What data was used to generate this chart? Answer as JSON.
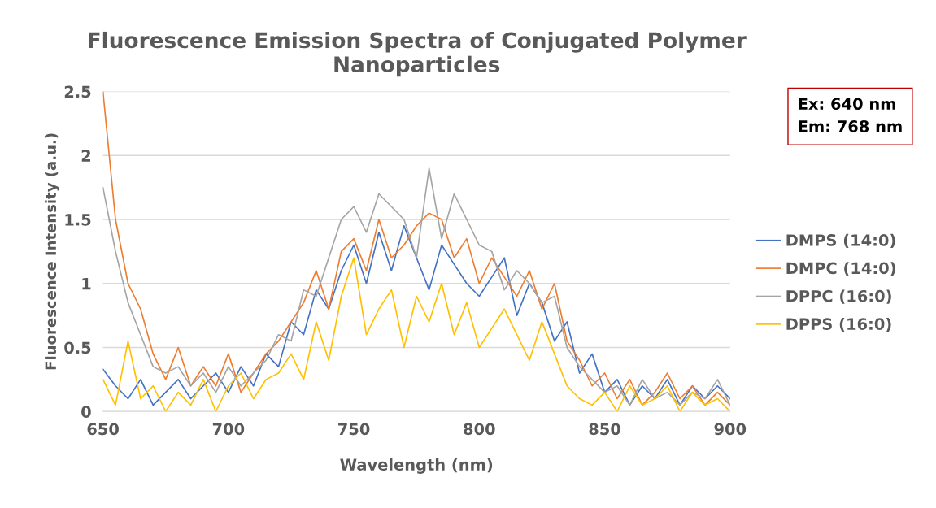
{
  "chart_data": {
    "type": "line",
    "title": "Fluorescence Emission Spectra of Conjugated Polymer Nanoparticles",
    "xlabel": "Wavelength (nm)",
    "ylabel": "Fluorescence Intensity (a.u.)",
    "x": [
      650,
      655,
      660,
      665,
      670,
      675,
      680,
      685,
      690,
      695,
      700,
      705,
      710,
      715,
      720,
      725,
      730,
      735,
      740,
      745,
      750,
      755,
      760,
      765,
      770,
      775,
      780,
      785,
      790,
      795,
      800,
      805,
      810,
      815,
      820,
      825,
      830,
      835,
      840,
      845,
      850,
      855,
      860,
      865,
      870,
      875,
      880,
      885,
      890,
      895,
      900
    ],
    "series": [
      {
        "name": "DMPS (14:0)",
        "color": "#4472c4",
        "values": [
          0.33,
          0.2,
          0.1,
          0.25,
          0.05,
          0.15,
          0.25,
          0.1,
          0.2,
          0.3,
          0.15,
          0.35,
          0.2,
          0.45,
          0.35,
          0.7,
          0.6,
          0.95,
          0.8,
          1.1,
          1.3,
          1.0,
          1.4,
          1.1,
          1.45,
          1.2,
          0.95,
          1.3,
          1.15,
          1.0,
          0.9,
          1.05,
          1.2,
          0.75,
          1.0,
          0.85,
          0.55,
          0.7,
          0.3,
          0.45,
          0.15,
          0.25,
          0.05,
          0.2,
          0.1,
          0.25,
          0.05,
          0.2,
          0.1,
          0.2,
          0.1
        ]
      },
      {
        "name": "DMPC (14:0)",
        "color": "#ed7d31",
        "values": [
          2.5,
          1.5,
          1.0,
          0.8,
          0.45,
          0.25,
          0.5,
          0.2,
          0.35,
          0.2,
          0.45,
          0.15,
          0.3,
          0.45,
          0.55,
          0.7,
          0.85,
          1.1,
          0.8,
          1.25,
          1.35,
          1.1,
          1.5,
          1.2,
          1.3,
          1.45,
          1.55,
          1.5,
          1.2,
          1.35,
          1.0,
          1.2,
          1.05,
          0.9,
          1.1,
          0.8,
          1.0,
          0.55,
          0.4,
          0.2,
          0.3,
          0.1,
          0.25,
          0.05,
          0.15,
          0.3,
          0.1,
          0.2,
          0.05,
          0.15,
          0.05
        ]
      },
      {
        "name": "DPPC (16:0)",
        "color": "#a5a5a5",
        "values": [
          1.75,
          1.25,
          0.85,
          0.6,
          0.35,
          0.3,
          0.35,
          0.2,
          0.3,
          0.15,
          0.35,
          0.2,
          0.3,
          0.4,
          0.6,
          0.55,
          0.95,
          0.9,
          1.2,
          1.5,
          1.6,
          1.4,
          1.7,
          1.6,
          1.5,
          1.2,
          1.9,
          1.35,
          1.7,
          1.5,
          1.3,
          1.25,
          0.95,
          1.1,
          1.0,
          0.85,
          0.9,
          0.5,
          0.35,
          0.25,
          0.15,
          0.2,
          0.05,
          0.25,
          0.1,
          0.15,
          0.05,
          0.15,
          0.1,
          0.25,
          0.05
        ]
      },
      {
        "name": "DPPS (16:0)",
        "color": "#ffc000",
        "values": [
          0.25,
          0.05,
          0.55,
          0.1,
          0.2,
          0.0,
          0.15,
          0.05,
          0.25,
          0.0,
          0.2,
          0.3,
          0.1,
          0.25,
          0.3,
          0.45,
          0.25,
          0.7,
          0.4,
          0.9,
          1.2,
          0.6,
          0.8,
          0.95,
          0.5,
          0.9,
          0.7,
          1.0,
          0.6,
          0.85,
          0.5,
          0.65,
          0.8,
          0.6,
          0.4,
          0.7,
          0.45,
          0.2,
          0.1,
          0.05,
          0.15,
          0.0,
          0.2,
          0.05,
          0.1,
          0.2,
          0.0,
          0.15,
          0.05,
          0.1,
          0.0
        ]
      }
    ],
    "xlim": [
      650,
      900
    ],
    "xticks": [
      650,
      700,
      750,
      800,
      850,
      900
    ],
    "ylim": [
      0,
      2.5
    ],
    "yticks": [
      0,
      0.5,
      1,
      1.5,
      2,
      2.5
    ],
    "grid": "y",
    "legend": "right",
    "marker": "none",
    "line_style": "solid",
    "annotations": [
      "Ex: 640 nm\nEm: 768 nm"
    ]
  }
}
